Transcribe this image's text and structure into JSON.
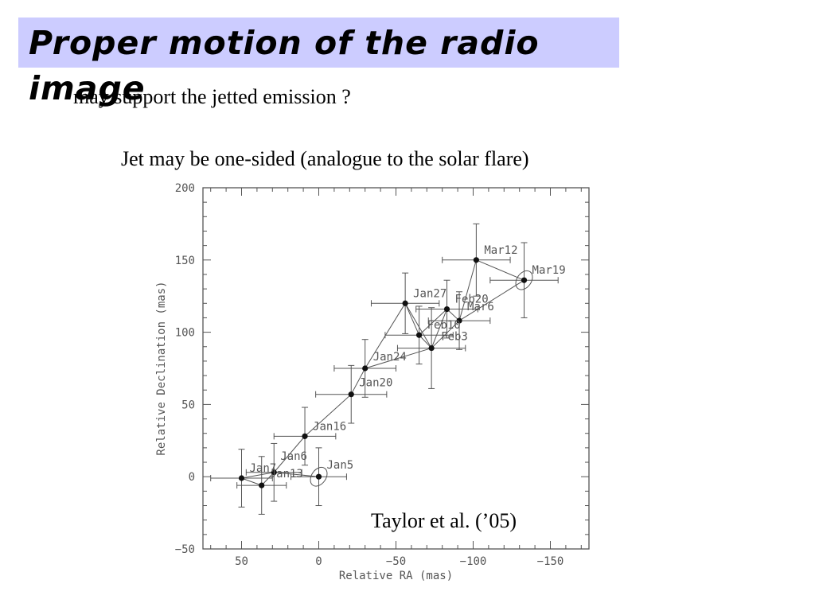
{
  "slide": {
    "title": "Proper motion of the radio image",
    "subtitle": "may support the jetted emission ?",
    "jet_note": "Jet may be one-sided (analogue to the solar flare)",
    "citation": "Taylor et al. (’05)"
  },
  "colors": {
    "title_bar": "#ccccff",
    "plot_ink": "#555555"
  },
  "chart_data": {
    "type": "scatter",
    "xlabel": "Relative RA (mas)",
    "ylabel": "Relative Declination (mas)",
    "xlim": [
      75,
      -175
    ],
    "ylim": [
      -50,
      200
    ],
    "x_reversed": true,
    "x_ticks": [
      50,
      0,
      -50,
      -100,
      -150
    ],
    "x_tick_labels": [
      "50",
      "0",
      "−50",
      "−100",
      "−150"
    ],
    "y_ticks": [
      -50,
      0,
      50,
      100,
      150,
      200
    ],
    "y_tick_labels": [
      "−50",
      "0",
      "50",
      "100",
      "150",
      "200"
    ],
    "grid": false,
    "connected": true,
    "points": [
      {
        "label": "Jan5",
        "x": 0,
        "y": 0,
        "xerr": 18,
        "yerr": 20
      },
      {
        "label": "Jan6",
        "x": 29,
        "y": 3,
        "xerr": 18,
        "yerr": 20
      },
      {
        "label": "Jan7",
        "x": 50,
        "y": -1,
        "xerr": 20,
        "yerr": 20
      },
      {
        "label": "Jan13",
        "x": 37,
        "y": -6,
        "xerr": 16,
        "yerr": 20
      },
      {
        "label": "Jan16",
        "x": 9,
        "y": 28,
        "xerr": 20,
        "yerr": 20
      },
      {
        "label": "Jan20",
        "x": -21,
        "y": 57,
        "xerr": 23,
        "yerr": 20
      },
      {
        "label": "Jan24",
        "x": -30,
        "y": 75,
        "xerr": 20,
        "yerr": 20
      },
      {
        "label": "Jan27",
        "x": -56,
        "y": 120,
        "xerr": 22,
        "yerr": 21
      },
      {
        "label": "Feb3",
        "x": -73,
        "y": 89,
        "xerr": 22,
        "yerr": 28
      },
      {
        "label": "Feb10",
        "x": -65,
        "y": 98,
        "xerr": 22,
        "yerr": 20
      },
      {
        "label": "Feb20",
        "x": -83,
        "y": 116,
        "xerr": 20,
        "yerr": 20
      },
      {
        "label": "Mar6",
        "x": -91,
        "y": 108,
        "xerr": 20,
        "yerr": 20
      },
      {
        "label": "Mar12",
        "x": -102,
        "y": 150,
        "xerr": 22,
        "yerr": 25
      },
      {
        "label": "Mar19",
        "x": -133,
        "y": 136,
        "xerr": 22,
        "yerr": 26
      }
    ],
    "connections": [
      [
        "Jan7",
        "Jan13"
      ],
      [
        "Jan7",
        "Jan6"
      ],
      [
        "Jan13",
        "Jan6"
      ],
      [
        "Jan6",
        "Jan5"
      ],
      [
        "Jan6",
        "Jan16"
      ],
      [
        "Jan16",
        "Jan20"
      ],
      [
        "Jan20",
        "Jan24"
      ],
      [
        "Jan24",
        "Jan27"
      ],
      [
        "Jan24",
        "Feb3"
      ],
      [
        "Jan27",
        "Feb10"
      ],
      [
        "Jan27",
        "Feb3"
      ],
      [
        "Feb10",
        "Feb3"
      ],
      [
        "Feb3",
        "Feb20"
      ],
      [
        "Feb10",
        "Feb20"
      ],
      [
        "Feb20",
        "Mar6"
      ],
      [
        "Feb3",
        "Mar6"
      ],
      [
        "Mar6",
        "Mar12"
      ],
      [
        "Mar12",
        "Mar19"
      ],
      [
        "Mar6",
        "Mar19"
      ]
    ],
    "ellipses": [
      "Jan5",
      "Mar19"
    ]
  }
}
